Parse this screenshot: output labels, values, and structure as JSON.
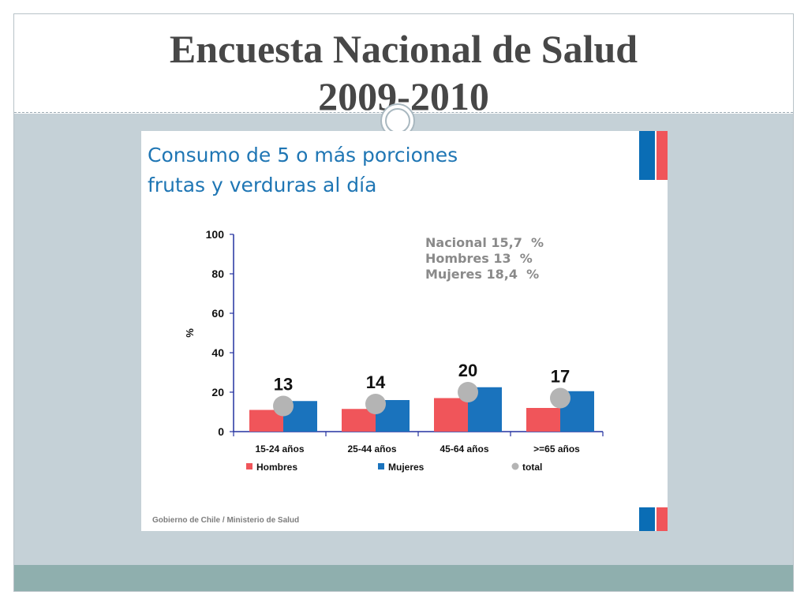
{
  "page": {
    "title_line1": "Encuesta Nacional de Salud",
    "title_line2": "2009-2010"
  },
  "slide": {
    "credit": "Gobierno de Chile / Ministerio de Salud",
    "stats": [
      "Nacional 15,7  %",
      "Hombres 13  %",
      "Mujeres 18,4  %"
    ]
  },
  "colors": {
    "hombres": "#f0555a",
    "mujeres": "#1a73bd",
    "total": "#b4b4b4",
    "axis": "#2432a0"
  },
  "chart_data": {
    "type": "bar",
    "title_lines": [
      "Consumo de 5 o más porciones",
      "frutas y verduras al día"
    ],
    "ylabel": "%",
    "ylim": [
      0,
      100
    ],
    "yticks": [
      0,
      20,
      40,
      60,
      80,
      100
    ],
    "categories": [
      "15-24 años",
      "25-44 años",
      "45-64 años",
      ">=65 años"
    ],
    "series": [
      {
        "name": "Hombres",
        "values": [
          11,
          11.5,
          17,
          12
        ]
      },
      {
        "name": "Mujeres",
        "values": [
          15.5,
          16,
          22.5,
          20.5
        ]
      },
      {
        "name": "total",
        "values": [
          13,
          14,
          20,
          17
        ]
      }
    ],
    "data_labels": [
      "13",
      "14",
      "20",
      "17"
    ],
    "legend_position": "bottom"
  }
}
